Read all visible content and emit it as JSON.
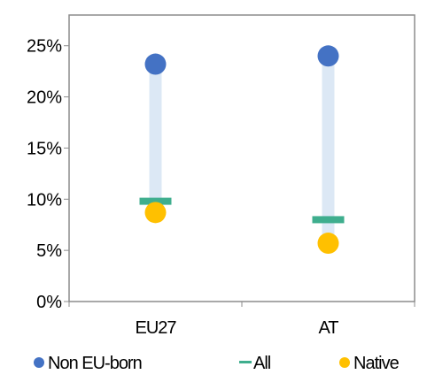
{
  "chart_data": {
    "type": "dot-range",
    "categories": [
      "EU27",
      "AT"
    ],
    "series": [
      {
        "name": "Non EU-born",
        "values": [
          23.2,
          24.0
        ],
        "color": "#4472C4",
        "marker": "circle"
      },
      {
        "name": "All",
        "values": [
          9.8,
          8.0
        ],
        "color": "#3FAE8E",
        "marker": "dash"
      },
      {
        "name": "Native",
        "values": [
          8.7,
          5.7
        ],
        "color": "#FFC000",
        "marker": "circle"
      }
    ],
    "range_bar_color": "#DCE8F5",
    "y_ticks": [
      "0%",
      "5%",
      "10%",
      "15%",
      "20%",
      "25%"
    ],
    "ylim": [
      0,
      28
    ],
    "grid": false,
    "legend_position": "bottom"
  }
}
